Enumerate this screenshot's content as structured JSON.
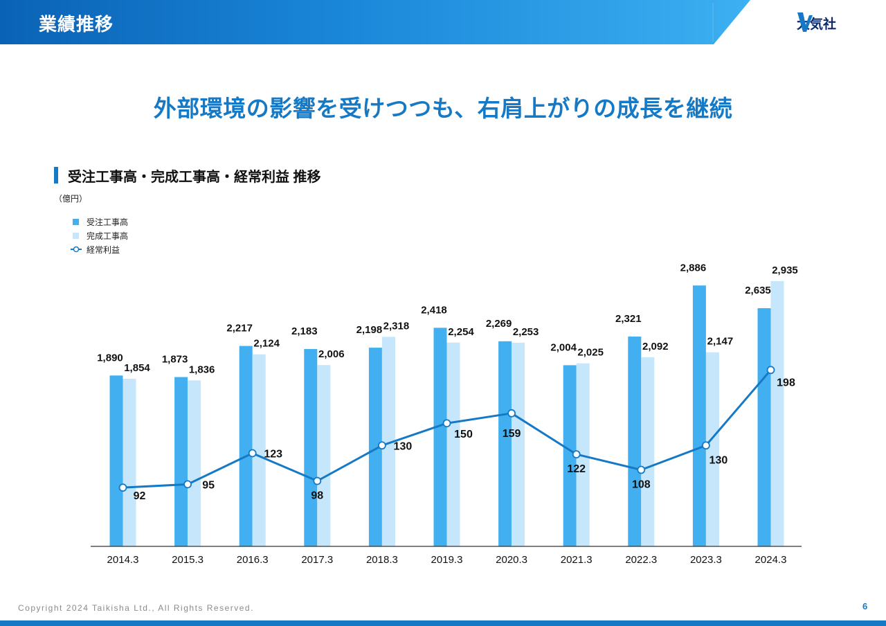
{
  "header": {
    "section_title": "業績推移",
    "logo_text": "大気社"
  },
  "headline": "外部環境の影響を受けつつも、右肩上がりの成長を継続",
  "chart_heading": "受注工事高・完成工事高・経常利益 推移",
  "unit_label": "（億円）",
  "colors": {
    "brand_blue": "#1579c6",
    "orders": "#42b0f0",
    "completed": "#c5e6fb",
    "profit_line": "#1579c6"
  },
  "chart_data": {
    "type": "bar+line",
    "categories": [
      "2014.3",
      "2015.3",
      "2016.3",
      "2017.3",
      "2018.3",
      "2019.3",
      "2020.3",
      "2021.3",
      "2022.3",
      "2023.3",
      "2024.3"
    ],
    "series": [
      {
        "name": "受注工事高",
        "type": "bar",
        "values": [
          1890,
          1873,
          2217,
          2183,
          2198,
          2418,
          2269,
          2004,
          2321,
          2886,
          2635
        ]
      },
      {
        "name": "完成工事高",
        "type": "bar",
        "values": [
          1854,
          1836,
          2124,
          2006,
          2318,
          2254,
          2253,
          2025,
          2092,
          2147,
          2935
        ]
      },
      {
        "name": "経常利益",
        "type": "line",
        "values": [
          92,
          95,
          123,
          98,
          130,
          150,
          159,
          122,
          108,
          130,
          198
        ]
      }
    ],
    "bar_ylim": [
      0,
      3200
    ],
    "line_ylim": [
      -390,
      290
    ],
    "grid": false,
    "legend_position": "top-left"
  },
  "footer": {
    "copyright": "Copyright 2024 Taikisha Ltd., All Rights Reserved.",
    "page_number": "6"
  }
}
